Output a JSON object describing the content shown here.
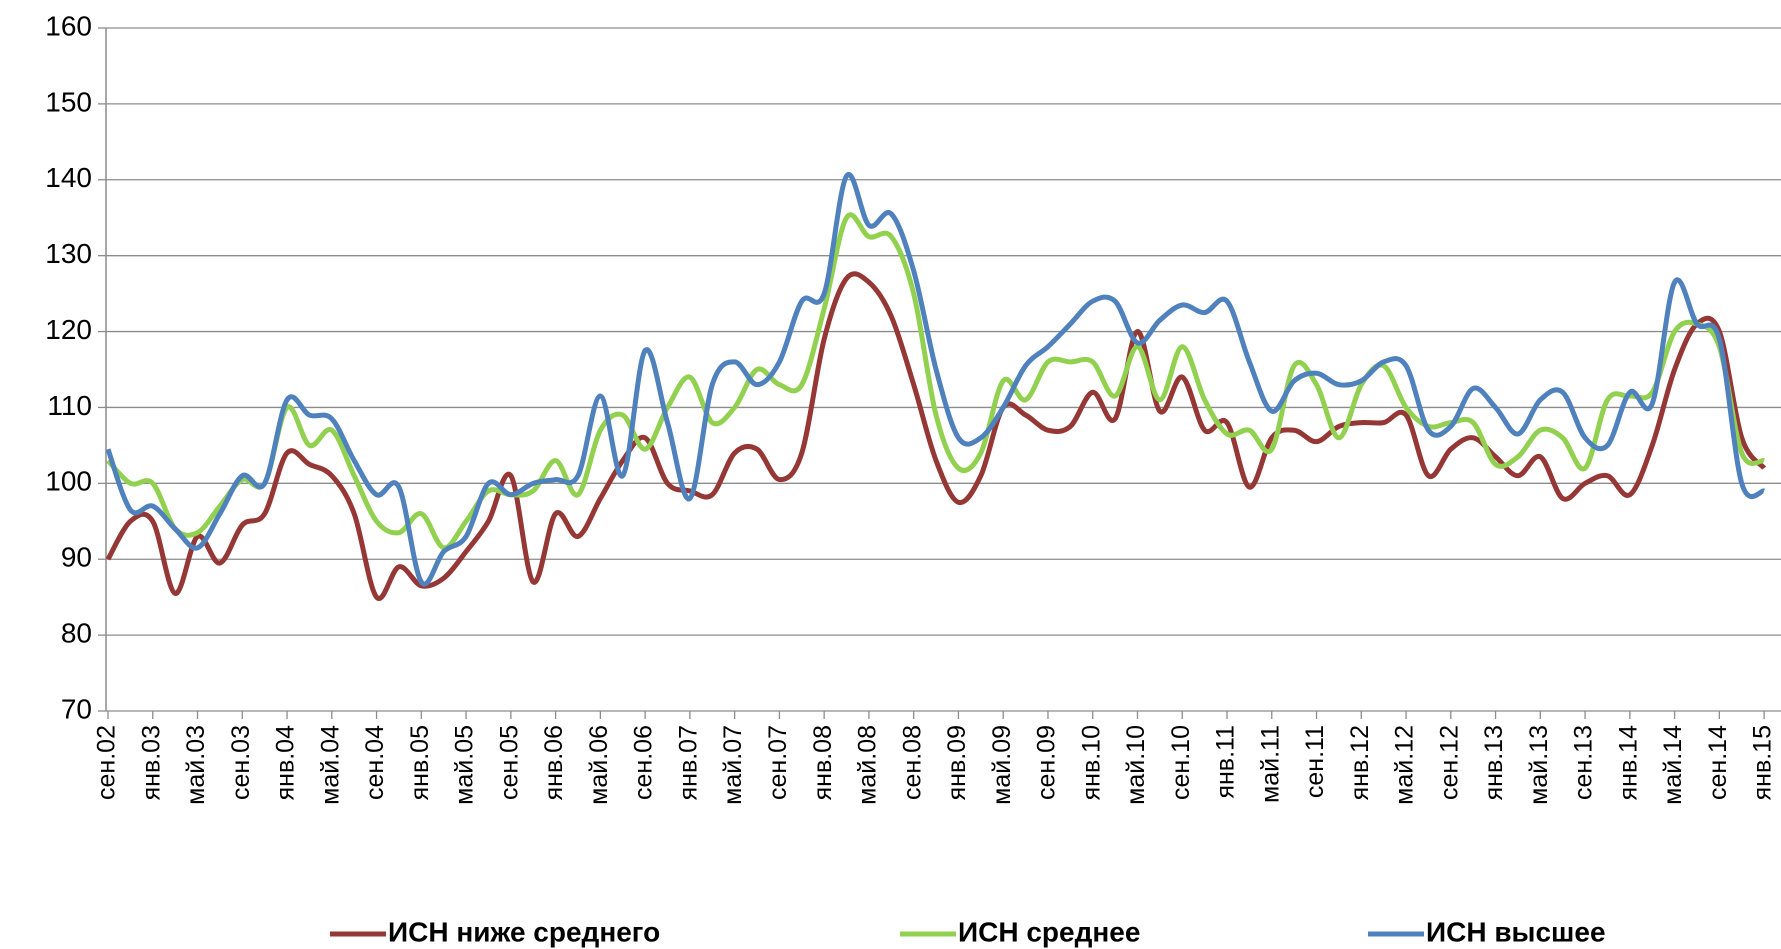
{
  "chart_data": {
    "type": "line",
    "categories": [
      "сен.02",
      null,
      "янв.03",
      null,
      "май.03",
      null,
      "сен.03",
      null,
      "янв.04",
      null,
      "май.04",
      null,
      "сен.04",
      null,
      "янв.05",
      null,
      "май.05",
      null,
      "сен.05",
      null,
      "янв.06",
      null,
      "май.06",
      null,
      "сен.06",
      null,
      "янв.07",
      null,
      "май.07",
      null,
      "сен.07",
      null,
      "янв.08",
      null,
      "май.08",
      null,
      "сен.08",
      null,
      "янв.09",
      null,
      "май.09",
      null,
      "сен.09",
      null,
      "янв.10",
      null,
      "май.10",
      null,
      "сен.10",
      null,
      "янв.11",
      null,
      "май.11",
      null,
      "сен.11",
      null,
      "янв.12",
      null,
      "май.12",
      null,
      "сен.12",
      null,
      "янв.13",
      null,
      "май.13",
      null,
      "сен.13",
      null,
      "янв.14",
      null,
      "май.14",
      null,
      "сен.14",
      null,
      "янв.15"
    ],
    "series": [
      {
        "name": "ИСН ниже среднего",
        "color": "#953735",
        "values": [
          90,
          95,
          95,
          85.5,
          93,
          89.5,
          94.5,
          96,
          104,
          102.5,
          101,
          96,
          85,
          89,
          86.5,
          87.5,
          91,
          95,
          101,
          87,
          96,
          93,
          98,
          103,
          106,
          100,
          99,
          98.5,
          104,
          104.5,
          100.5,
          104,
          119,
          127,
          126.5,
          122,
          113,
          103,
          97.5,
          101,
          110,
          109,
          107,
          107.5,
          112,
          108.5,
          120,
          109.5,
          114,
          107,
          108,
          99.5,
          106,
          107,
          105.5,
          107.5,
          108,
          108,
          109,
          101,
          104.5,
          106,
          103.5,
          101,
          103.5,
          98,
          100,
          101,
          98.5,
          105,
          115,
          121,
          120,
          106,
          102
        ]
      },
      {
        "name": "ИСН среднее",
        "color": "#92d050",
        "values": [
          103,
          100,
          100,
          94,
          93.5,
          97,
          100.5,
          100,
          110,
          105,
          107,
          101,
          95,
          93.5,
          96,
          91.5,
          95,
          99,
          98.5,
          99,
          103,
          98.5,
          107,
          109,
          104.5,
          110,
          114,
          108,
          110,
          115,
          113,
          113,
          123,
          135,
          132.5,
          132.5,
          125,
          109,
          102,
          104,
          113.5,
          111,
          116,
          116,
          116,
          111.5,
          118,
          111,
          118,
          111,
          106.5,
          107,
          104.5,
          115.5,
          113,
          106,
          113,
          115.5,
          110,
          107.5,
          108,
          108,
          102.5,
          103.5,
          107,
          106,
          102,
          111,
          111.5,
          112,
          120,
          121,
          118,
          104,
          103
        ]
      },
      {
        "name": "ИСН высшее",
        "color": "#4f81bd",
        "values": [
          104.5,
          96.5,
          97,
          94,
          91.5,
          96,
          101,
          100,
          111,
          109,
          108.5,
          103,
          98.5,
          99.5,
          87,
          91,
          93,
          100,
          98.5,
          100,
          100.5,
          101,
          111.5,
          101,
          117.5,
          108,
          98,
          113,
          116,
          113,
          116,
          124,
          125,
          140.5,
          134,
          135.5,
          128,
          115,
          106,
          106,
          110,
          115.5,
          118,
          121,
          124,
          124,
          118.5,
          121.5,
          123.5,
          122.5,
          124,
          116,
          109.5,
          113.5,
          114.5,
          113,
          113.5,
          116,
          115.5,
          107,
          107.5,
          112.5,
          110,
          106.5,
          111,
          112,
          106,
          105,
          112,
          110.5,
          126.5,
          121,
          119,
          100,
          99
        ]
      }
    ],
    "ylim": [
      70,
      160
    ],
    "yticks": [
      70,
      80,
      90,
      100,
      110,
      120,
      130,
      140,
      150,
      160
    ],
    "grid": true
  }
}
